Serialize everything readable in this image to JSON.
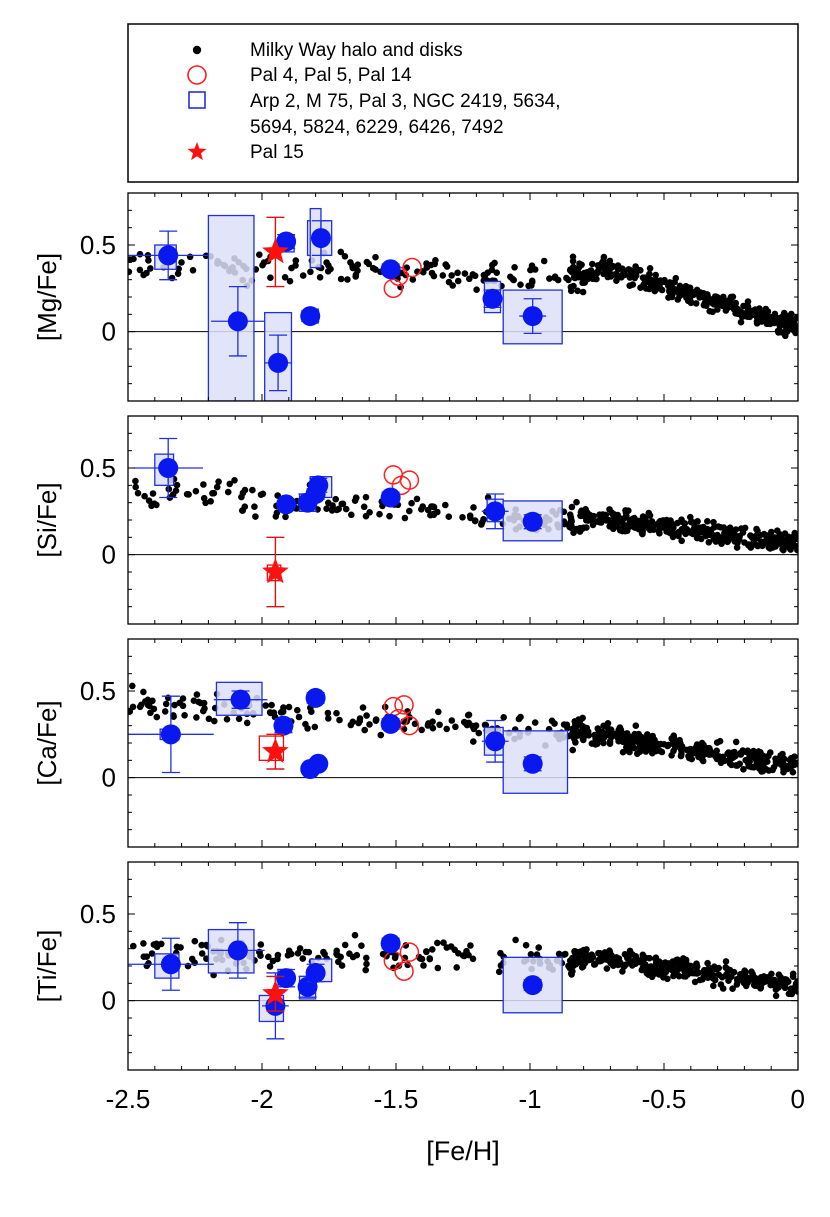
{
  "chart_data": {
    "type": "scatter",
    "shared_xlabel": "[Fe/H]",
    "xlim": [
      -2.5,
      0
    ],
    "x_ticks": [
      -2.5,
      -2,
      -1.5,
      -1,
      -0.5,
      0
    ],
    "x_tick_labels": [
      "-2.5",
      "-2",
      "-1.5",
      "-1",
      "-0.5",
      "0"
    ],
    "ylim": [
      -0.4,
      0.8
    ],
    "y_tick_labels": [
      "0.5",
      "0"
    ],
    "legend": {
      "placement": "top",
      "entries": [
        {
          "label": "Milky Way halo and disks",
          "marker": "filled-dot",
          "color": "#000000"
        },
        {
          "label": "Pal 4, Pal 5, Pal 14",
          "marker": "open-circle",
          "color": "#ff2020"
        },
        {
          "label": "Arp 2, M 75, Pal 3, NGC 2419, 5634,",
          "label_cont": "5694, 5824, 6229, 6426, 7492",
          "marker": "open-square",
          "color": "#2030e0"
        },
        {
          "label": "Pal 15",
          "marker": "star",
          "color": "#ff1010"
        }
      ]
    },
    "panels": [
      {
        "ylabel": "[Mg/Fe]",
        "clusters": [
          {
            "x": -2.35,
            "y": 0.44,
            "yerr": 0.14,
            "xerr": 0.15,
            "box": [
              -2.4,
              -2.32,
              0.36,
              0.5
            ]
          },
          {
            "x": -2.09,
            "y": 0.06,
            "yerr": 0.2,
            "xerr": 0.1,
            "box": [
              -2.2,
              -2.03,
              -0.4,
              0.67
            ]
          },
          {
            "x": -1.94,
            "y": -0.18,
            "yerr": 0.16,
            "xerr": 0.05,
            "box": [
              -1.99,
              -1.89,
              -0.4,
              0.11
            ]
          },
          {
            "x": -1.91,
            "y": 0.52,
            "yerr": 0.04,
            "xerr": 0.03,
            "box": [
              -1.93,
              -1.88,
              0.46,
              0.56
            ]
          },
          {
            "x": -1.82,
            "y": 0.09,
            "yerr": 0.03,
            "xerr": 0.02,
            "box": [
              -1.84,
              -1.79,
              0.05,
              0.13
            ]
          },
          {
            "x": -1.78,
            "y": 0.54,
            "yerr": 0.1,
            "xerr": 0.03,
            "box": [
              -1.83,
              -1.74,
              0.44,
              0.64
            ]
          },
          {
            "x": -1.8,
            "y": 0.5,
            "yerr": 0.0,
            "xerr": 0.0,
            "box": [
              -1.82,
              -1.78,
              0.37,
              0.71
            ]
          },
          {
            "x": -1.52,
            "y": 0.36,
            "yerr": 0.03,
            "xerr": 0.03,
            "box": [
              -1.54,
              -1.5,
              0.33,
              0.39
            ]
          },
          {
            "x": -1.14,
            "y": 0.19,
            "yerr": 0.05,
            "xerr": 0.03,
            "box": [
              -1.17,
              -1.11,
              0.11,
              0.29
            ]
          },
          {
            "x": -0.99,
            "y": 0.09,
            "yerr": 0.1,
            "xerr": 0.05,
            "box": [
              -1.1,
              -0.88,
              -0.07,
              0.24
            ]
          }
        ],
        "open_circles": [
          {
            "x": -1.51,
            "y": 0.25
          },
          {
            "x": -1.49,
            "y": 0.32
          },
          {
            "x": -1.44,
            "y": 0.37
          }
        ],
        "star": {
          "x": -1.95,
          "y": 0.46,
          "yerr": 0.2,
          "xerr": 0.02
        }
      },
      {
        "ylabel": "[Si/Fe]",
        "clusters": [
          {
            "x": -2.35,
            "y": 0.5,
            "yerr": 0.17,
            "xerr": 0.13,
            "box": [
              -2.4,
              -2.33,
              0.4,
              0.58
            ]
          },
          {
            "x": -1.91,
            "y": 0.29,
            "yerr": 0.02,
            "xerr": 0.02,
            "box": [
              -1.93,
              -1.89,
              0.27,
              0.32
            ]
          },
          {
            "x": -1.83,
            "y": 0.3,
            "yerr": 0.05,
            "xerr": 0.03,
            "box": [
              -1.86,
              -1.8,
              0.25,
              0.35
            ]
          },
          {
            "x": -1.8,
            "y": 0.35,
            "yerr": 0.03,
            "xerr": 0.02,
            "box": [
              -1.82,
              -1.78,
              0.32,
              0.38
            ]
          },
          {
            "x": -1.79,
            "y": 0.4,
            "yerr": 0.04,
            "xerr": 0.03,
            "box": [
              -1.82,
              -1.74,
              0.33,
              0.45
            ]
          },
          {
            "x": -1.52,
            "y": 0.33,
            "yerr": 0.03,
            "xerr": 0.03,
            "box": [
              -1.54,
              -1.5,
              0.3,
              0.36
            ]
          },
          {
            "x": -1.13,
            "y": 0.25,
            "yerr": 0.1,
            "xerr": 0.05,
            "box": [
              -1.16,
              -1.1,
              0.19,
              0.32
            ]
          },
          {
            "x": -0.99,
            "y": 0.19,
            "yerr": 0.04,
            "xerr": 0.03,
            "box": [
              -1.1,
              -0.88,
              0.08,
              0.31
            ]
          }
        ],
        "open_circles": [
          {
            "x": -1.51,
            "y": 0.46
          },
          {
            "x": -1.48,
            "y": 0.4
          },
          {
            "x": -1.45,
            "y": 0.43
          }
        ],
        "star": {
          "x": -1.95,
          "y": -0.1,
          "yerr": 0.2,
          "xerr": 0.02,
          "box": [
            -1.98,
            -1.93,
            -0.15,
            -0.06
          ]
        }
      },
      {
        "ylabel": "[Ca/Fe]",
        "clusters": [
          {
            "x": -2.34,
            "y": 0.25,
            "yerr": 0.22,
            "xerr": 0.16,
            "box": [
              -2.38,
              -2.31,
              0.22,
              0.28
            ]
          },
          {
            "x": -2.08,
            "y": 0.45,
            "yerr": 0.05,
            "xerr": 0.1,
            "box": [
              -2.17,
              -2.0,
              0.36,
              0.55
            ]
          },
          {
            "x": -1.92,
            "y": 0.3,
            "yerr": 0.04,
            "xerr": 0.03,
            "box": [
              -1.95,
              -1.89,
              0.26,
              0.34
            ]
          },
          {
            "x": -1.82,
            "y": 0.05,
            "yerr": 0.02,
            "xerr": 0.02,
            "box": [
              -1.84,
              -1.8,
              0.03,
              0.07
            ]
          },
          {
            "x": -1.79,
            "y": 0.08,
            "yerr": 0.02,
            "xerr": 0.02,
            "box": [
              -1.82,
              -1.77,
              0.05,
              0.1
            ]
          },
          {
            "x": -1.8,
            "y": 0.46,
            "yerr": 0.03,
            "xerr": 0.02,
            "box": [
              -1.82,
              -1.78,
              0.43,
              0.49
            ]
          },
          {
            "x": -1.52,
            "y": 0.31,
            "yerr": 0.03,
            "xerr": 0.03,
            "box": [
              -1.54,
              -1.5,
              0.28,
              0.34
            ]
          },
          {
            "x": -1.13,
            "y": 0.21,
            "yerr": 0.12,
            "xerr": 0.05,
            "box": [
              -1.17,
              -1.1,
              0.13,
              0.29
            ]
          },
          {
            "x": -0.99,
            "y": 0.08,
            "yerr": 0.04,
            "xerr": 0.03,
            "box": [
              -1.1,
              -0.86,
              -0.09,
              0.27
            ]
          }
        ],
        "open_circles": [
          {
            "x": -1.51,
            "y": 0.41
          },
          {
            "x": -1.47,
            "y": 0.42
          },
          {
            "x": -1.45,
            "y": 0.3
          },
          {
            "x": -1.49,
            "y": 0.34
          }
        ],
        "star": {
          "x": -1.95,
          "y": 0.15,
          "yerr": 0.1,
          "xerr": 0.02,
          "box": [
            -2.01,
            -1.92,
            0.1,
            0.24
          ]
        }
      },
      {
        "ylabel": "[Ti/Fe]",
        "clusters": [
          {
            "x": -2.34,
            "y": 0.21,
            "yerr": 0.15,
            "xerr": 0.16,
            "box": [
              -2.4,
              -2.31,
              0.13,
              0.27
            ]
          },
          {
            "x": -2.09,
            "y": 0.29,
            "yerr": 0.16,
            "xerr": 0.1,
            "box": [
              -2.2,
              -2.03,
              0.16,
              0.41
            ]
          },
          {
            "x": -1.95,
            "y": -0.03,
            "yerr": 0.19,
            "xerr": 0.05,
            "box": [
              -2.01,
              -1.92,
              -0.12,
              0.03
            ]
          },
          {
            "x": -1.91,
            "y": 0.13,
            "yerr": 0.05,
            "xerr": 0.03,
            "box": [
              -1.94,
              -1.89,
              0.09,
              0.18
            ]
          },
          {
            "x": -1.83,
            "y": 0.08,
            "yerr": 0.06,
            "xerr": 0.03,
            "box": [
              -1.86,
              -1.8,
              0.01,
              0.14
            ]
          },
          {
            "x": -1.8,
            "y": 0.16,
            "yerr": 0.05,
            "xerr": 0.03,
            "box": [
              -1.82,
              -1.74,
              0.11,
              0.24
            ]
          },
          {
            "x": -1.52,
            "y": 0.33,
            "yerr": 0.03,
            "xerr": 0.03,
            "box": [
              -1.54,
              -1.5,
              0.3,
              0.36
            ]
          },
          {
            "x": -0.99,
            "y": 0.09,
            "yerr": 0.03,
            "xerr": 0.03,
            "box": [
              -1.1,
              -0.88,
              -0.07,
              0.25
            ]
          }
        ],
        "open_circles": [
          {
            "x": -1.51,
            "y": 0.23
          },
          {
            "x": -1.47,
            "y": 0.17
          },
          {
            "x": -1.45,
            "y": 0.28
          }
        ],
        "star": {
          "x": -1.95,
          "y": 0.04,
          "yerr": 0.1,
          "xerr": 0.02
        }
      }
    ],
    "milky_way_note": "Approximately 1,900 field-star points scattered along the trend, denser at [Fe/H] > -0.8"
  }
}
